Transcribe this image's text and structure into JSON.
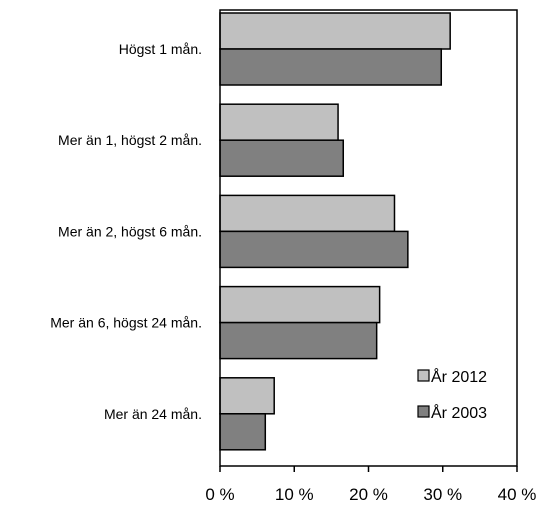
{
  "chart_data": {
    "type": "bar",
    "orientation": "horizontal",
    "categories": [
      "Högst 1 mån.",
      "Mer än 1, högst 2 mån.",
      "Mer än 2, högst 6 mån.",
      "Mer än 6, högst 24 mån.",
      "Mer än 24 mån."
    ],
    "series": [
      {
        "name": "År 2012",
        "color": "#c0c0c0",
        "values": [
          31,
          15.9,
          23.5,
          21.5,
          7.3
        ]
      },
      {
        "name": "År 2003",
        "color": "#808080",
        "values": [
          29.8,
          16.6,
          25.3,
          21.1,
          6.1
        ]
      }
    ],
    "xlim": [
      0,
      40
    ],
    "xticks": [
      0,
      10,
      20,
      30,
      40
    ],
    "tick_labels": [
      "0 %",
      "10 %",
      "20 %",
      "30 %",
      "40 %"
    ],
    "legend": [
      "År 2012",
      "År 2003"
    ],
    "legend_position": "inside-bottom-right",
    "grid": false,
    "title": "",
    "xlabel": "",
    "ylabel": ""
  }
}
